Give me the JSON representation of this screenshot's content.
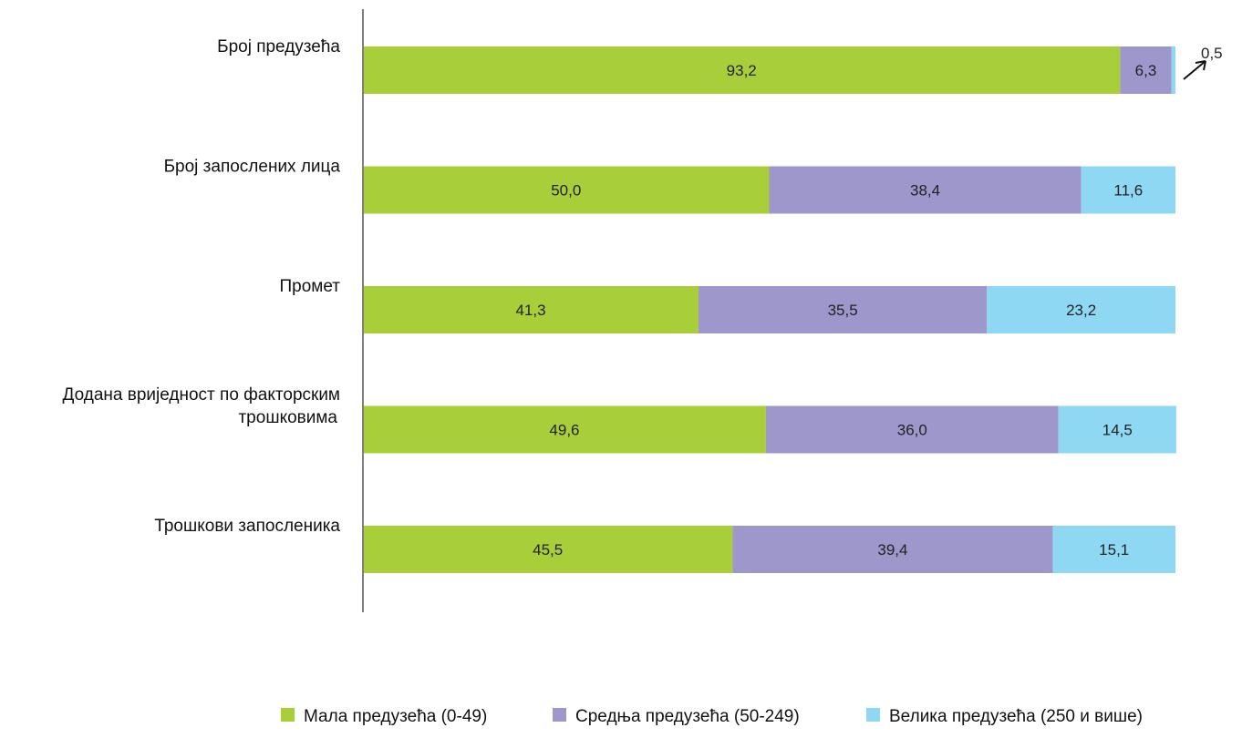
{
  "chart_data": {
    "type": "bar",
    "orientation": "horizontal",
    "stacked": true,
    "categories": [
      [
        "Број предузећа"
      ],
      [
        "Број запослених лица"
      ],
      [
        "Промет"
      ],
      [
        "Додана вриједност по факторским",
        "трошковима"
      ],
      [
        "Трошкови запосленика"
      ]
    ],
    "series": [
      {
        "name": "Мала предузећа (0-49)",
        "color": "#a8cf3a",
        "values": [
          93.2,
          50.0,
          41.3,
          49.6,
          45.5
        ],
        "labels": [
          "93,2",
          "50,0",
          "41,3",
          "49,6",
          "45,5"
        ]
      },
      {
        "name": "Средња предузећа (50-249)",
        "color": "#9e97cb",
        "values": [
          6.3,
          38.4,
          35.5,
          36.0,
          39.4
        ],
        "labels": [
          "6,3",
          "38,4",
          "35,5",
          "36,0",
          "39,4"
        ]
      },
      {
        "name": "Велика предузећа (250 и више)",
        "color": "#8fd8f3",
        "values": [
          0.5,
          11.6,
          23.2,
          14.5,
          15.1
        ],
        "labels": [
          "0,5",
          "11,6",
          "23,2",
          "14,5",
          "15,1"
        ]
      }
    ],
    "xlim": [
      0,
      100
    ],
    "callout": {
      "category_index": 0,
      "series_index": 2,
      "label": "0,5"
    },
    "legend": "bottom",
    "grid": false
  }
}
